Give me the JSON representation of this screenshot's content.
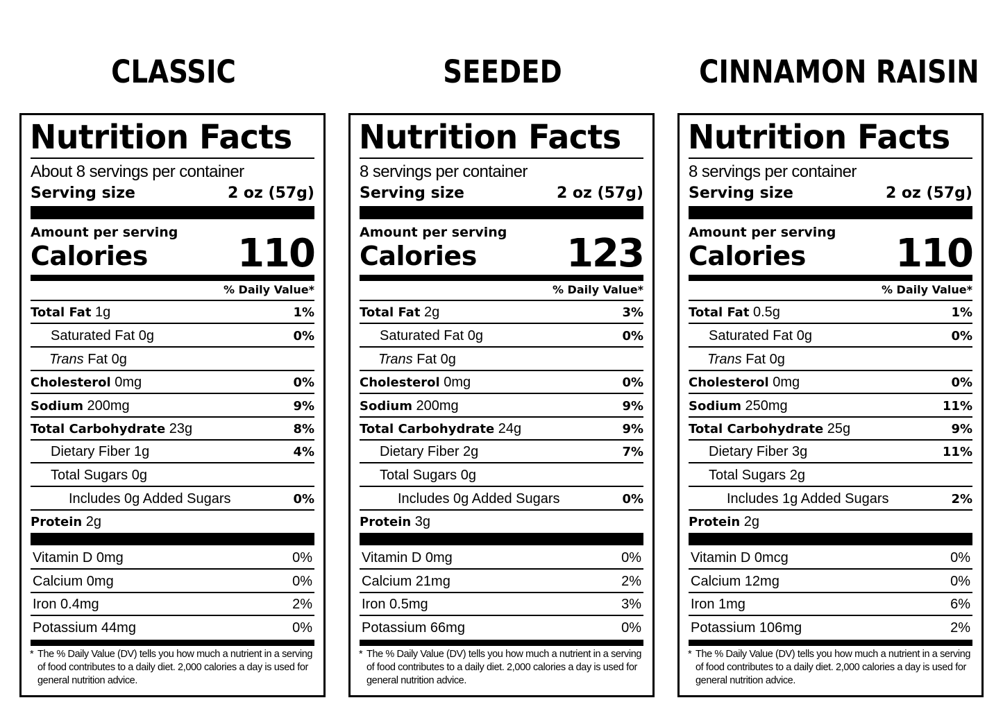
{
  "labels": [
    {
      "heading": "CLASSIC",
      "title": "Nutrition Facts",
      "servings": "About 8 servings per container",
      "serving_size_label": "Serving size",
      "serving_size_value": "2 oz (57g)",
      "amount_per_serving": "Amount per serving",
      "calories_label": "Calories",
      "calories": "110",
      "daily_value_header": "% Daily Value*",
      "nutrients": [
        {
          "bold": "Total Fat",
          "rest": " 1g",
          "pct": "1%"
        },
        {
          "bold": "",
          "rest": "Saturated Fat 0g",
          "pct": "0%"
        },
        {
          "italic": "Trans",
          "rest": " Fat 0g",
          "pct": ""
        },
        {
          "bold": "Cholesterol",
          "rest": " 0mg",
          "pct": "0%"
        },
        {
          "bold": "Sodium",
          "rest": " 200mg",
          "pct": "9%"
        },
        {
          "bold": "Total Carbohydrate",
          "rest": " 23g",
          "pct": "8%"
        },
        {
          "bold": "",
          "rest": "Dietary Fiber 1g",
          "pct": "4%"
        },
        {
          "bold": "",
          "rest": "Total Sugars 0g",
          "pct": ""
        },
        {
          "bold": "",
          "rest": "Includes 0g Added Sugars",
          "pct": "0%"
        },
        {
          "bold": "Protein",
          "rest": " 2g",
          "pct": ""
        }
      ],
      "vitamins": [
        {
          "name": "Vitamin D 0mg",
          "pct": "0%"
        },
        {
          "name": "Calcium 0mg",
          "pct": "0%"
        },
        {
          "name": "Iron 0.4mg",
          "pct": "2%"
        },
        {
          "name": "Potassium 44mg",
          "pct": "0%"
        }
      ],
      "footnote_mark": "*",
      "footnote": "The % Daily Value (DV) tells you how much a nutrient in a serving of food contributes to a daily diet. 2,000 calories a day is used for general nutrition advice."
    },
    {
      "heading": "SEEDED",
      "title": "Nutrition Facts",
      "servings": "8 servings per container",
      "serving_size_label": "Serving size",
      "serving_size_value": "2 oz (57g)",
      "amount_per_serving": "Amount per serving",
      "calories_label": "Calories",
      "calories": "123",
      "daily_value_header": "% Daily Value*",
      "nutrients": [
        {
          "bold": "Total Fat",
          "rest": " 2g",
          "pct": "3%"
        },
        {
          "bold": "",
          "rest": "Saturated Fat 0g",
          "pct": "0%"
        },
        {
          "italic": "Trans",
          "rest": " Fat 0g",
          "pct": ""
        },
        {
          "bold": "Cholesterol",
          "rest": " 0mg",
          "pct": "0%"
        },
        {
          "bold": "Sodium",
          "rest": " 200mg",
          "pct": "9%"
        },
        {
          "bold": "Total Carbohydrate",
          "rest": " 24g",
          "pct": "9%"
        },
        {
          "bold": "",
          "rest": "Dietary Fiber 2g",
          "pct": "7%"
        },
        {
          "bold": "",
          "rest": "Total Sugars 0g",
          "pct": ""
        },
        {
          "bold": "",
          "rest": "Includes 0g Added Sugars",
          "pct": "0%"
        },
        {
          "bold": "Protein",
          "rest": " 3g",
          "pct": ""
        }
      ],
      "vitamins": [
        {
          "name": "Vitamin D 0mg",
          "pct": "0%"
        },
        {
          "name": "Calcium 21mg",
          "pct": "2%"
        },
        {
          "name": "Iron 0.5mg",
          "pct": "3%"
        },
        {
          "name": "Potassium 66mg",
          "pct": "0%"
        }
      ],
      "footnote_mark": "*",
      "footnote": "The % Daily Value (DV) tells you how much a nutrient in a serving of food contributes to a daily diet. 2,000 calories a day is used for general nutrition advice."
    },
    {
      "heading": "CINNAMON RAISIN",
      "title": "Nutrition Facts",
      "servings": "8 servings per container",
      "serving_size_label": "Serving size",
      "serving_size_value": "2 oz (57g)",
      "amount_per_serving": "Amount per serving",
      "calories_label": "Calories",
      "calories": "110",
      "daily_value_header": "% Daily Value*",
      "nutrients": [
        {
          "bold": "Total Fat",
          "rest": " 0.5g",
          "pct": "1%"
        },
        {
          "bold": "",
          "rest": "Saturated Fat 0g",
          "pct": "0%"
        },
        {
          "italic": "Trans",
          "rest": " Fat 0g",
          "pct": ""
        },
        {
          "bold": "Cholesterol",
          "rest": " 0mg",
          "pct": "0%"
        },
        {
          "bold": "Sodium",
          "rest": " 250mg",
          "pct": "11%"
        },
        {
          "bold": "Total Carbohydrate",
          "rest": " 25g",
          "pct": "9%"
        },
        {
          "bold": "",
          "rest": "Dietary Fiber 3g",
          "pct": "11%"
        },
        {
          "bold": "",
          "rest": "Total Sugars 2g",
          "pct": ""
        },
        {
          "bold": "",
          "rest": "Includes 1g Added Sugars",
          "pct": "2%"
        },
        {
          "bold": "Protein",
          "rest": " 2g",
          "pct": ""
        }
      ],
      "vitamins": [
        {
          "name": "Vitamin D 0mcg",
          "pct": "0%"
        },
        {
          "name": "Calcium 12mg",
          "pct": "0%"
        },
        {
          "name": "Iron 1mg",
          "pct": "6%"
        },
        {
          "name": "Potassium 106mg",
          "pct": "2%"
        }
      ],
      "footnote_mark": "*",
      "footnote": "The % Daily Value (DV) tells you how much a nutrient in a serving of food contributes to a daily diet. 2,000 calories a day is used for general nutrition advice."
    }
  ]
}
